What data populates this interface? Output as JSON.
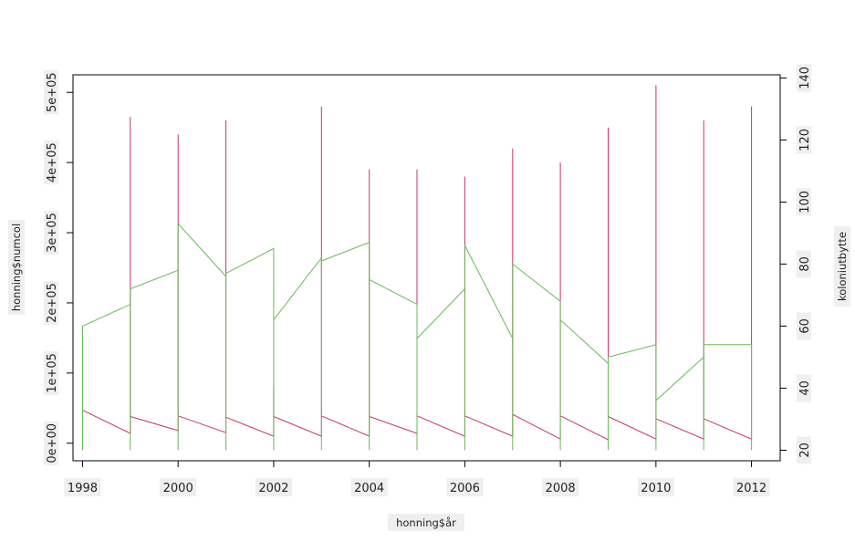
{
  "chart_data": {
    "type": "line",
    "xlabel": "honning$år",
    "ylabel_left": "honning$numcol",
    "ylabel_right": "koloniutbytte",
    "x_ticks": [
      "1998",
      "2000",
      "2002",
      "2004",
      "2006",
      "2008",
      "2010",
      "2012"
    ],
    "y_left_ticks": [
      "0e+00",
      "1e+05",
      "2e+05",
      "3e+05",
      "4e+05",
      "5e+05"
    ],
    "y_right_ticks": [
      "20",
      "40",
      "60",
      "80",
      "100",
      "120",
      "140"
    ],
    "xlim": [
      1997.8,
      2012.6
    ],
    "ylim_left": [
      -25000,
      525000
    ],
    "ylim_right": [
      16.6,
      141
    ],
    "grid": false,
    "legend": "none",
    "series": [
      {
        "axis": "left",
        "color": "#cc3366",
        "x": [
          1998,
          1998,
          1999,
          1999,
          1999,
          2000,
          2000,
          2000,
          2001,
          2001,
          2001,
          2002,
          2002,
          2002,
          2003,
          2003,
          2003,
          2004,
          2004,
          2004,
          2005,
          2005,
          2005,
          2006,
          2006,
          2006,
          2007,
          2007,
          2007,
          2008,
          2008,
          2008,
          2009,
          2009,
          2009,
          2010,
          2010,
          2010,
          2011,
          2011,
          2011,
          2012,
          2012
        ],
        "y": [
          0,
          47000,
          14000,
          465000,
          38000,
          18000,
          440000,
          39000,
          15000,
          460000,
          37000,
          10000,
          80000,
          38000,
          10000,
          480000,
          39000,
          10000,
          390000,
          38000,
          14000,
          390000,
          39000,
          10000,
          380000,
          39000,
          10000,
          420000,
          41000,
          6000,
          400000,
          39000,
          5000,
          450000,
          38000,
          6000,
          510000,
          35000,
          6000,
          460000,
          35000,
          6000,
          480000
        ]
      },
      {
        "axis": "right",
        "color": "#66bb55",
        "x": [
          1998,
          1998,
          1999,
          1999,
          1999,
          2000,
          2000,
          2000,
          2001,
          2001,
          2001,
          2002,
          2002,
          2002,
          2003,
          2003,
          2003,
          2004,
          2004,
          2004,
          2005,
          2005,
          2005,
          2006,
          2006,
          2006,
          2007,
          2007,
          2007,
          2008,
          2008,
          2008,
          2009,
          2009,
          2009,
          2010,
          2010,
          2010,
          2011,
          2011,
          2011,
          2012,
          2012
        ],
        "y": [
          20,
          60,
          67,
          20,
          72,
          78,
          20,
          93,
          76,
          20,
          77,
          85,
          20,
          62,
          82,
          20,
          81,
          87,
          20,
          75,
          67,
          20,
          56,
          72,
          20,
          86,
          56,
          20,
          80,
          68,
          20,
          62,
          48,
          20,
          50,
          54,
          20,
          36,
          50,
          20,
          54,
          54,
          20
        ]
      }
    ]
  }
}
